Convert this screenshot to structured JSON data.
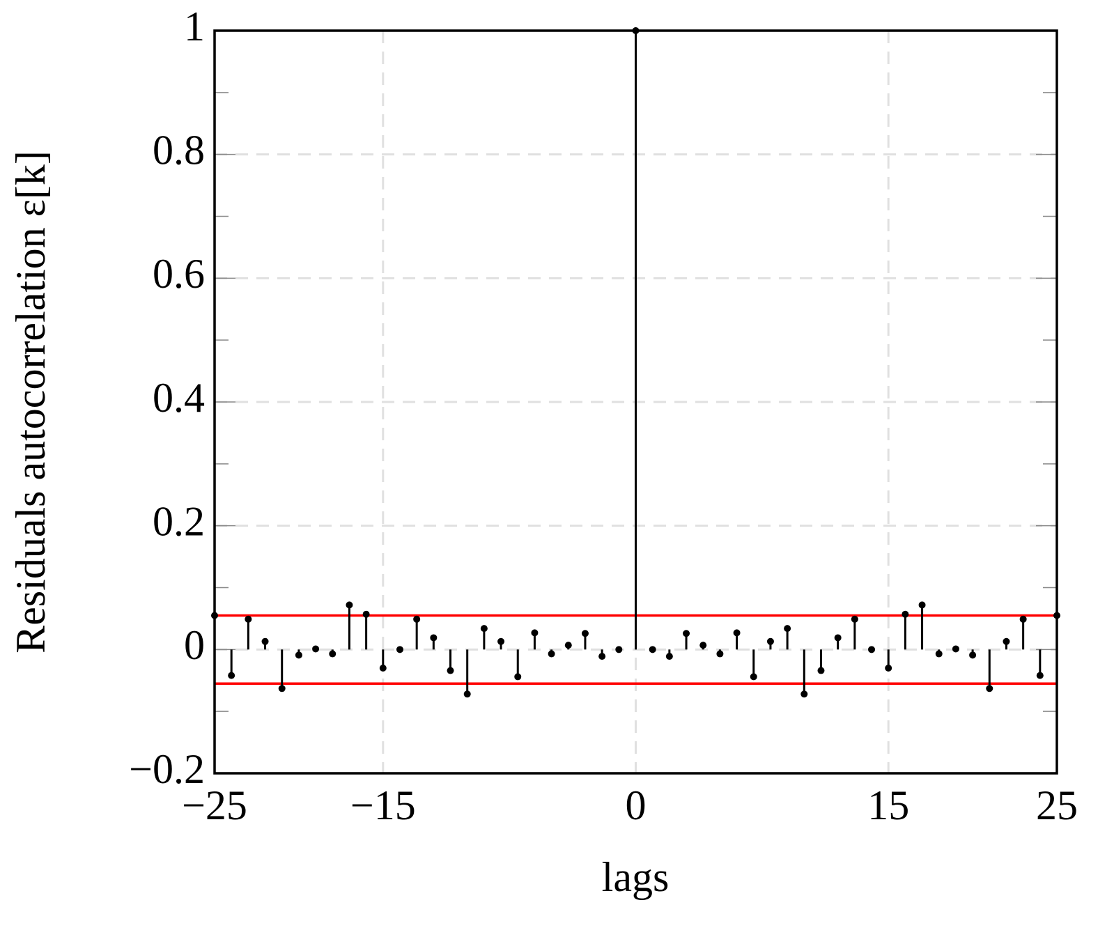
{
  "chart_data": {
    "type": "stem",
    "xlabel": "lags",
    "ylabel": "Residuals autocorrelation ε[k]",
    "x": [
      -25,
      -24,
      -23,
      -22,
      -21,
      -20,
      -19,
      -18,
      -17,
      -16,
      -15,
      -14,
      -13,
      -12,
      -11,
      -10,
      -9,
      -8,
      -7,
      -6,
      -5,
      -4,
      -3,
      -2,
      -1,
      0,
      1,
      2,
      3,
      4,
      5,
      6,
      7,
      8,
      9,
      10,
      11,
      12,
      13,
      14,
      15,
      16,
      17,
      18,
      19,
      20,
      21,
      22,
      23,
      24,
      25
    ],
    "values": [
      0.055,
      -0.042,
      0.049,
      0.013,
      -0.063,
      -0.009,
      0.001,
      -0.007,
      0.072,
      0.057,
      -0.03,
      0.0,
      0.049,
      0.019,
      -0.034,
      -0.072,
      0.034,
      0.013,
      -0.044,
      0.027,
      -0.007,
      0.007,
      0.026,
      -0.011,
      0.0,
      1,
      0.0,
      -0.011,
      0.026,
      0.007,
      -0.007,
      0.027,
      -0.044,
      0.013,
      0.034,
      -0.072,
      -0.034,
      0.019,
      0.049,
      0.0,
      -0.03,
      0.057,
      0.072,
      -0.007,
      0.001,
      -0.009,
      -0.063,
      0.013,
      0.049,
      -0.042,
      0.055
    ],
    "color": "#000000",
    "bounds": [
      0.055,
      -0.055
    ],
    "bounds_color": "#ff0000",
    "xlim": [
      -25,
      25
    ],
    "ylim": [
      -0.2,
      1
    ],
    "xticks": [
      {
        "value": -25,
        "label": "−25"
      },
      {
        "value": -15,
        "label": "−15"
      },
      0,
      15,
      25
    ],
    "yticks": [
      {
        "value": -0.2,
        "label": "−0.2"
      },
      0,
      0.2,
      0.4,
      0.6,
      0.8,
      1
    ],
    "yticks_minor": [
      -0.1,
      0.1,
      0.3,
      0.5,
      0.7,
      0.9
    ],
    "grid": true
  }
}
